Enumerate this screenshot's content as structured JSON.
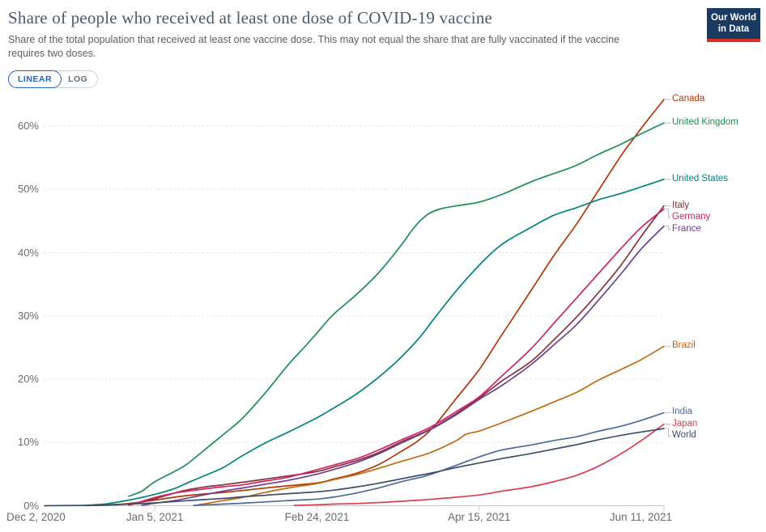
{
  "logo": {
    "line1": "Our World",
    "line2": "in Data"
  },
  "controls": {
    "scale_options": [
      {
        "label": "LINEAR",
        "selected": true
      },
      {
        "label": "LOG",
        "selected": false
      }
    ]
  },
  "chart_data": {
    "type": "line",
    "title": "Share of people who received at least one dose of COVID-19 vaccine",
    "subtitle": "Share of the total population that received at least one vaccine dose. This may not equal the share that are fully vaccinated if the vaccine requires two doses.",
    "unit": "%",
    "grid": true,
    "legend_position": "right",
    "x_range_days": [
      0,
      191
    ],
    "x_ticks": [
      {
        "day": 0,
        "label": "Dec 2, 2020"
      },
      {
        "day": 34,
        "label": "Jan 5, 2021"
      },
      {
        "day": 84,
        "label": "Feb 24, 2021"
      },
      {
        "day": 134,
        "label": "Apr 15, 2021"
      },
      {
        "day": 191,
        "label": "Jun 11, 2021"
      }
    ],
    "y_ticks": [
      0,
      10,
      20,
      30,
      40,
      50,
      60
    ],
    "y_range": [
      0,
      65
    ],
    "series": [
      {
        "name": "Canada",
        "color": "#B13507",
        "points": [
          [
            13,
            0.02
          ],
          [
            20,
            0.15
          ],
          [
            26,
            0.35
          ],
          [
            34,
            0.9
          ],
          [
            44,
            1.6
          ],
          [
            55,
            2.1
          ],
          [
            61,
            2.4
          ],
          [
            70,
            2.9
          ],
          [
            84,
            3.6
          ],
          [
            89,
            4.2
          ],
          [
            96,
            5.1
          ],
          [
            103,
            6.5
          ],
          [
            110,
            8.6
          ],
          [
            115,
            10.2
          ],
          [
            120,
            12.5
          ],
          [
            127,
            17
          ],
          [
            134,
            21.5
          ],
          [
            141,
            27
          ],
          [
            150,
            34
          ],
          [
            157,
            39.5
          ],
          [
            164,
            44.5
          ],
          [
            171,
            50
          ],
          [
            178,
            55.5
          ],
          [
            182,
            58.3
          ],
          [
            186,
            61
          ],
          [
            191,
            64.2
          ]
        ]
      },
      {
        "name": "United Kingdom",
        "color": "#1C8E54",
        "points": [
          [
            26,
            1.5
          ],
          [
            30,
            2.3
          ],
          [
            34,
            3.8
          ],
          [
            40,
            5.4
          ],
          [
            44,
            6.6
          ],
          [
            50,
            9.1
          ],
          [
            55,
            11.2
          ],
          [
            61,
            13.8
          ],
          [
            68,
            17.8
          ],
          [
            75,
            22.2
          ],
          [
            80,
            25
          ],
          [
            84,
            27.3
          ],
          [
            89,
            30.2
          ],
          [
            96,
            33.3
          ],
          [
            103,
            36.8
          ],
          [
            110,
            41.2
          ],
          [
            114,
            44
          ],
          [
            118,
            46
          ],
          [
            122,
            46.9
          ],
          [
            127,
            47.4
          ],
          [
            134,
            48
          ],
          [
            141,
            49.2
          ],
          [
            150,
            51.2
          ],
          [
            157,
            52.5
          ],
          [
            164,
            53.8
          ],
          [
            171,
            55.6
          ],
          [
            178,
            57.2
          ],
          [
            184,
            58.8
          ],
          [
            191,
            60.5
          ]
        ]
      },
      {
        "name": "United States",
        "color": "#00847E",
        "points": [
          [
            12,
            0.05
          ],
          [
            19,
            0.3
          ],
          [
            26,
            0.9
          ],
          [
            34,
            1.8
          ],
          [
            40,
            2.7
          ],
          [
            44,
            3.6
          ],
          [
            50,
            4.9
          ],
          [
            55,
            6
          ],
          [
            61,
            7.9
          ],
          [
            68,
            9.9
          ],
          [
            75,
            11.6
          ],
          [
            84,
            13.9
          ],
          [
            89,
            15.4
          ],
          [
            96,
            17.6
          ],
          [
            103,
            20.3
          ],
          [
            110,
            23.5
          ],
          [
            116,
            26.8
          ],
          [
            120,
            29.5
          ],
          [
            127,
            34
          ],
          [
            134,
            38
          ],
          [
            141,
            41.3
          ],
          [
            150,
            44
          ],
          [
            157,
            45.9
          ],
          [
            164,
            47.1
          ],
          [
            171,
            48.4
          ],
          [
            178,
            49.4
          ],
          [
            184,
            50.4
          ],
          [
            191,
            51.6
          ]
        ]
      },
      {
        "name": "Italy",
        "color": "#883039",
        "points": [
          [
            26,
            0.1
          ],
          [
            30,
            0.6
          ],
          [
            34,
            1.1
          ],
          [
            40,
            2
          ],
          [
            44,
            2.5
          ],
          [
            50,
            3
          ],
          [
            55,
            3.3
          ],
          [
            61,
            3.7
          ],
          [
            68,
            4.2
          ],
          [
            75,
            4.7
          ],
          [
            84,
            5.4
          ],
          [
            89,
            6.1
          ],
          [
            96,
            7.1
          ],
          [
            103,
            8.4
          ],
          [
            110,
            10.1
          ],
          [
            116,
            11.4
          ],
          [
            120,
            12.4
          ],
          [
            127,
            14.6
          ],
          [
            134,
            17
          ],
          [
            141,
            19.7
          ],
          [
            150,
            22.8
          ],
          [
            157,
            26.2
          ],
          [
            164,
            29.8
          ],
          [
            171,
            33.8
          ],
          [
            178,
            38.2
          ],
          [
            184,
            42.6
          ],
          [
            191,
            47.4
          ]
        ]
      },
      {
        "name": "Germany",
        "color": "#CF2364",
        "points": [
          [
            27,
            0.2
          ],
          [
            34,
            1.3
          ],
          [
            40,
            2
          ],
          [
            44,
            2.3
          ],
          [
            50,
            2.7
          ],
          [
            55,
            3
          ],
          [
            61,
            3.3
          ],
          [
            68,
            3.9
          ],
          [
            75,
            4.5
          ],
          [
            84,
            5.7
          ],
          [
            89,
            6.4
          ],
          [
            96,
            7.4
          ],
          [
            103,
            8.8
          ],
          [
            110,
            10.4
          ],
          [
            116,
            11.7
          ],
          [
            120,
            12.7
          ],
          [
            127,
            14.9
          ],
          [
            134,
            17.2
          ],
          [
            141,
            20.5
          ],
          [
            150,
            24.8
          ],
          [
            157,
            28.8
          ],
          [
            164,
            32.8
          ],
          [
            171,
            36.8
          ],
          [
            178,
            40.8
          ],
          [
            184,
            44
          ],
          [
            191,
            46.9
          ]
        ]
      },
      {
        "name": "France",
        "color": "#6D3E91",
        "points": [
          [
            30,
            0.05
          ],
          [
            34,
            0.4
          ],
          [
            40,
            0.8
          ],
          [
            48,
            1.6
          ],
          [
            55,
            2.3
          ],
          [
            61,
            2.8
          ],
          [
            68,
            3.4
          ],
          [
            75,
            4
          ],
          [
            84,
            5
          ],
          [
            89,
            5.7
          ],
          [
            96,
            6.8
          ],
          [
            103,
            8.2
          ],
          [
            110,
            9.9
          ],
          [
            116,
            11.3
          ],
          [
            120,
            12.3
          ],
          [
            127,
            14.4
          ],
          [
            134,
            16.8
          ],
          [
            141,
            19
          ],
          [
            150,
            22.3
          ],
          [
            157,
            25.4
          ],
          [
            164,
            28.6
          ],
          [
            171,
            32.6
          ],
          [
            178,
            36.8
          ],
          [
            184,
            40.6
          ],
          [
            191,
            44.2
          ]
        ]
      },
      {
        "name": "Brazil",
        "color": "#C26910",
        "points": [
          [
            47,
            0.1
          ],
          [
            55,
            0.8
          ],
          [
            61,
            1.3
          ],
          [
            68,
            2.1
          ],
          [
            75,
            2.8
          ],
          [
            84,
            3.5
          ],
          [
            89,
            4.1
          ],
          [
            96,
            4.9
          ],
          [
            103,
            5.9
          ],
          [
            110,
            7
          ],
          [
            116,
            7.9
          ],
          [
            120,
            8.6
          ],
          [
            127,
            10.3
          ],
          [
            130,
            11.3
          ],
          [
            134,
            11.8
          ],
          [
            141,
            13.1
          ],
          [
            150,
            14.9
          ],
          [
            157,
            16.4
          ],
          [
            164,
            17.9
          ],
          [
            171,
            19.9
          ],
          [
            178,
            21.6
          ],
          [
            184,
            23.1
          ],
          [
            191,
            25.2
          ]
        ]
      },
      {
        "name": "India",
        "color": "#4C6A9C",
        "points": [
          [
            46,
            0.05
          ],
          [
            55,
            0.25
          ],
          [
            61,
            0.4
          ],
          [
            68,
            0.6
          ],
          [
            75,
            0.8
          ],
          [
            84,
            1.05
          ],
          [
            89,
            1.35
          ],
          [
            96,
            2
          ],
          [
            103,
            2.8
          ],
          [
            110,
            3.8
          ],
          [
            116,
            4.5
          ],
          [
            120,
            5.1
          ],
          [
            127,
            6.4
          ],
          [
            134,
            7.7
          ],
          [
            141,
            8.8
          ],
          [
            150,
            9.6
          ],
          [
            157,
            10.3
          ],
          [
            164,
            10.9
          ],
          [
            171,
            11.8
          ],
          [
            178,
            12.6
          ],
          [
            184,
            13.5
          ],
          [
            191,
            14.7
          ]
        ]
      },
      {
        "name": "Japan",
        "color": "#DB3E52",
        "points": [
          [
            77,
            0.05
          ],
          [
            84,
            0.15
          ],
          [
            89,
            0.25
          ],
          [
            96,
            0.35
          ],
          [
            103,
            0.5
          ],
          [
            110,
            0.7
          ],
          [
            116,
            0.9
          ],
          [
            120,
            1.05
          ],
          [
            127,
            1.35
          ],
          [
            134,
            1.7
          ],
          [
            141,
            2.3
          ],
          [
            150,
            3
          ],
          [
            157,
            3.8
          ],
          [
            164,
            4.8
          ],
          [
            171,
            6.3
          ],
          [
            178,
            8.3
          ],
          [
            184,
            10.3
          ],
          [
            191,
            12.9
          ]
        ]
      },
      {
        "name": "World",
        "color": "#3C4E66",
        "points": [
          [
            0,
            0
          ],
          [
            13,
            0.05
          ],
          [
            20,
            0.1
          ],
          [
            26,
            0.25
          ],
          [
            34,
            0.45
          ],
          [
            44,
            0.8
          ],
          [
            55,
            1.15
          ],
          [
            61,
            1.4
          ],
          [
            68,
            1.65
          ],
          [
            75,
            1.9
          ],
          [
            84,
            2.2
          ],
          [
            89,
            2.45
          ],
          [
            96,
            2.95
          ],
          [
            103,
            3.55
          ],
          [
            110,
            4.25
          ],
          [
            116,
            4.85
          ],
          [
            120,
            5.25
          ],
          [
            127,
            6.05
          ],
          [
            134,
            6.75
          ],
          [
            141,
            7.45
          ],
          [
            150,
            8.25
          ],
          [
            157,
            8.95
          ],
          [
            164,
            9.65
          ],
          [
            171,
            10.45
          ],
          [
            178,
            11.15
          ],
          [
            184,
            11.65
          ],
          [
            191,
            12.2
          ]
        ]
      }
    ]
  }
}
